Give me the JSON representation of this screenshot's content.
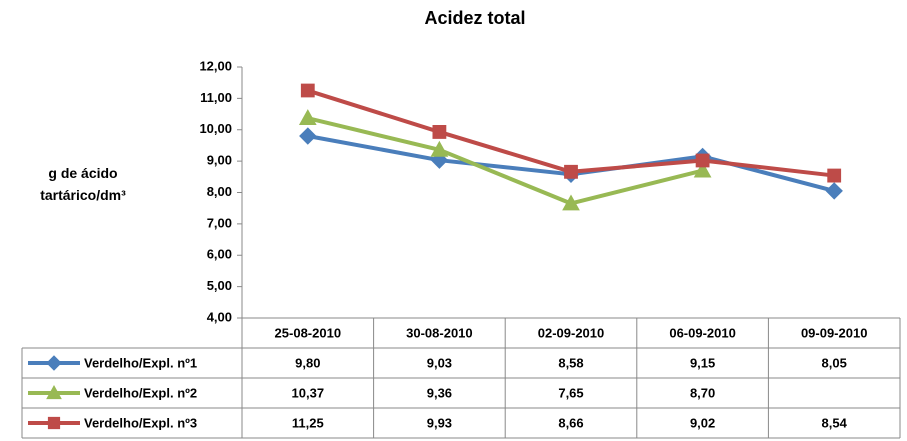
{
  "chart_data": {
    "type": "line",
    "title": "Acidez total",
    "y_label": "g  de ácido tartárico/dm³",
    "categories": [
      "25-08-2010",
      "30-08-2010",
      "02-09-2010",
      "06-09-2010",
      "09-09-2010"
    ],
    "series": [
      {
        "name": "Verdelho/Expl. nº1",
        "color": "#4a7ebb",
        "marker": "diamond",
        "values": [
          9.8,
          9.03,
          8.58,
          9.15,
          8.05
        ],
        "value_labels": [
          "9,80",
          "9,03",
          "8,58",
          "9,15",
          "8,05"
        ]
      },
      {
        "name": "Verdelho/Expl. nº2",
        "color": "#98b954",
        "marker": "triangle",
        "values": [
          10.37,
          9.36,
          7.65,
          8.7,
          null
        ],
        "value_labels": [
          "10,37",
          "9,36",
          "7,65",
          "8,70",
          null
        ]
      },
      {
        "name": "Verdelho/Expl. nº3",
        "color": "#be4b48",
        "marker": "square",
        "values": [
          11.25,
          9.93,
          8.66,
          9.02,
          8.54
        ],
        "value_labels": [
          "11,25",
          "9,93",
          "8,66",
          "9,02",
          "8,54"
        ]
      }
    ],
    "ylim": [
      4,
      12
    ],
    "yticks": [
      {
        "value": 4,
        "label": "4,00"
      },
      {
        "value": 5,
        "label": "5,00"
      },
      {
        "value": 6,
        "label": "6,00"
      },
      {
        "value": 7,
        "label": "7,00"
      },
      {
        "value": 8,
        "label": "8,00"
      },
      {
        "value": 9,
        "label": "9,00"
      },
      {
        "value": 10,
        "label": "10,00"
      },
      {
        "value": 11,
        "label": "11,00"
      },
      {
        "value": 12,
        "label": "12,00"
      }
    ],
    "grid": false
  }
}
